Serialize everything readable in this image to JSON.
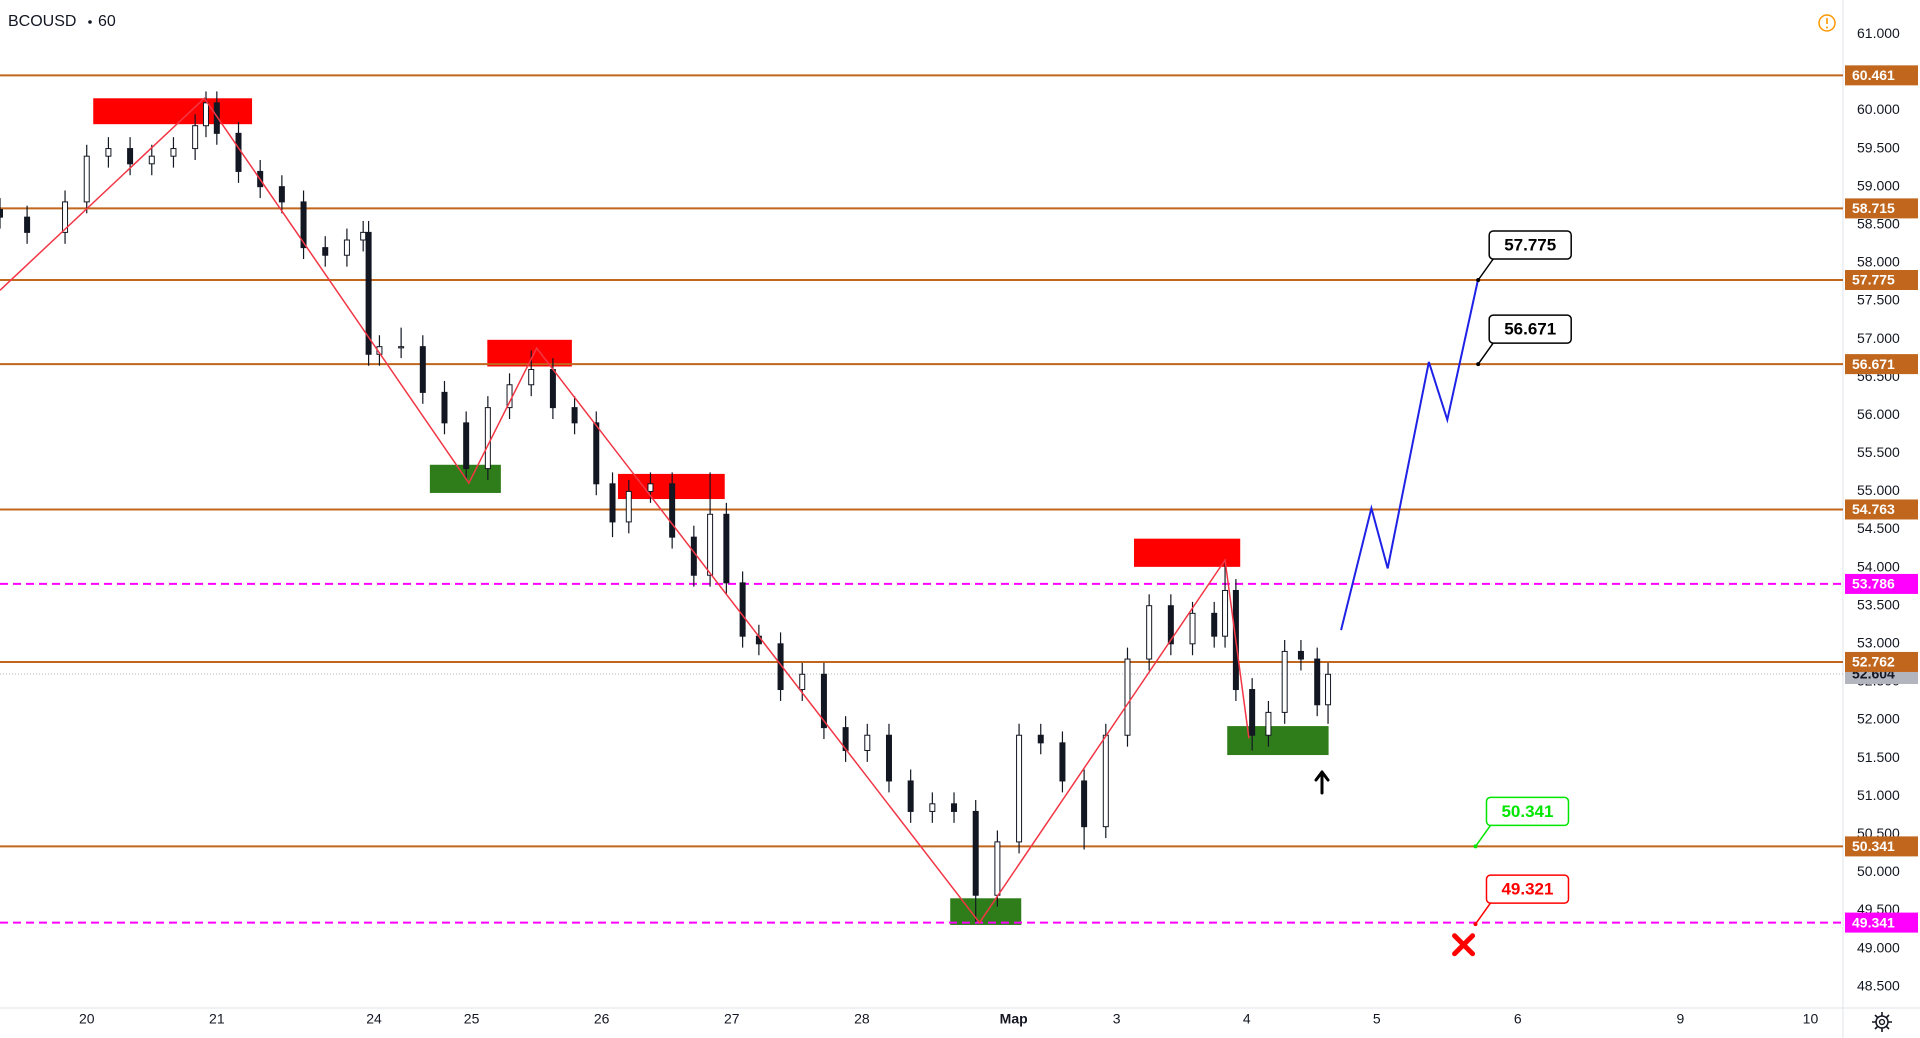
{
  "chart_data": {
    "type": "candlestick",
    "title": "BCOUSD",
    "interval": 60,
    "x": [
      0,
      5,
      12,
      16,
      20,
      24,
      28,
      32,
      36,
      38,
      40,
      44,
      48,
      52,
      56,
      60,
      64,
      67,
      68,
      70,
      74,
      78,
      82,
      86,
      90,
      94,
      98,
      102,
      106,
      110,
      113,
      116,
      120,
      124,
      128,
      131,
      134,
      137,
      140,
      144,
      148,
      152,
      156,
      160,
      164,
      168,
      172,
      176,
      180,
      184,
      188,
      192,
      196,
      200,
      204,
      208,
      212,
      216,
      220,
      224,
      226,
      228,
      231,
      234,
      237,
      240,
      243,
      245
    ],
    "open": [
      58.7,
      58.6,
      58.4,
      58.8,
      59.4,
      59.5,
      59.3,
      59.4,
      59.5,
      59.8,
      60.1,
      59.7,
      59.2,
      59.0,
      58.8,
      58.2,
      58.1,
      58.3,
      58.4,
      56.8,
      56.9,
      56.9,
      56.3,
      55.9,
      55.3,
      56.1,
      56.4,
      56.6,
      56.1,
      55.9,
      55.1,
      54.6,
      55.0,
      55.1,
      54.4,
      53.9,
      54.7,
      53.8,
      53.1,
      53.0,
      52.4,
      52.6,
      51.9,
      51.6,
      51.8,
      51.2,
      50.8,
      50.9,
      50.8,
      49.7,
      50.4,
      51.8,
      51.7,
      51.2,
      50.6,
      51.8,
      52.8,
      53.5,
      53.0,
      53.4,
      53.1,
      53.7,
      52.4,
      51.8,
      52.1,
      52.9,
      52.8,
      52.2
    ],
    "high": [
      58.85,
      58.75,
      58.95,
      59.55,
      59.65,
      59.65,
      59.55,
      59.65,
      59.95,
      60.25,
      60.25,
      59.85,
      59.35,
      59.15,
      58.95,
      58.35,
      58.45,
      58.55,
      58.55,
      57.05,
      57.15,
      57.05,
      56.45,
      56.05,
      56.25,
      56.55,
      56.85,
      56.75,
      56.25,
      56.05,
      55.25,
      55.15,
      55.25,
      55.25,
      54.55,
      55.25,
      54.85,
      53.95,
      53.25,
      53.15,
      52.75,
      52.75,
      52.05,
      51.95,
      51.95,
      51.35,
      51.05,
      51.05,
      50.95,
      50.55,
      51.95,
      51.95,
      51.85,
      51.35,
      51.95,
      52.95,
      53.65,
      53.65,
      53.55,
      53.55,
      54.1,
      53.85,
      52.55,
      52.25,
      53.05,
      53.05,
      52.95,
      52.75
    ],
    "low": [
      58.45,
      58.25,
      58.25,
      58.65,
      59.25,
      59.15,
      59.15,
      59.25,
      59.35,
      59.65,
      59.55,
      59.05,
      58.85,
      58.65,
      58.05,
      57.95,
      57.95,
      58.15,
      56.65,
      56.65,
      56.75,
      56.15,
      55.75,
      55.15,
      55.15,
      55.95,
      56.25,
      55.95,
      55.75,
      54.95,
      54.4,
      54.45,
      54.85,
      54.25,
      53.75,
      53.75,
      53.65,
      52.95,
      52.85,
      52.25,
      52.25,
      51.75,
      51.45,
      51.45,
      51.05,
      50.65,
      50.65,
      50.65,
      49.35,
      49.55,
      50.25,
      51.55,
      51.05,
      50.3,
      50.45,
      51.65,
      52.65,
      52.85,
      52.85,
      52.95,
      52.95,
      52.25,
      51.6,
      51.65,
      51.95,
      52.65,
      52.05,
      51.95
    ],
    "close": [
      58.6,
      58.4,
      58.8,
      59.4,
      59.5,
      59.3,
      59.4,
      59.5,
      59.8,
      60.1,
      59.7,
      59.2,
      59.0,
      58.8,
      58.2,
      58.1,
      58.3,
      58.4,
      56.8,
      56.9,
      56.9,
      56.3,
      55.9,
      55.3,
      56.1,
      56.4,
      56.6,
      56.1,
      55.9,
      55.1,
      54.6,
      55.0,
      55.1,
      54.4,
      53.9,
      54.7,
      53.8,
      53.1,
      53.0,
      52.4,
      52.6,
      51.9,
      51.6,
      51.8,
      51.2,
      50.8,
      50.9,
      50.8,
      49.7,
      50.4,
      51.8,
      51.7,
      51.2,
      50.6,
      51.8,
      52.8,
      53.5,
      53.0,
      53.4,
      53.1,
      53.7,
      52.4,
      51.8,
      52.1,
      52.9,
      52.8,
      52.2,
      52.6
    ],
    "candle_colors": {
      "up": "#ffffff",
      "down": "#131722"
    },
    "xlim": [
      0,
      340
    ],
    "xticks": [
      {
        "value": 16,
        "label": "20"
      },
      {
        "value": 40,
        "label": "21"
      },
      {
        "value": 69,
        "label": "24"
      },
      {
        "value": 87,
        "label": "25"
      },
      {
        "value": 111,
        "label": "26"
      },
      {
        "value": 135,
        "label": "27"
      },
      {
        "value": 159,
        "label": "28"
      },
      {
        "value": 187,
        "label": "Мар"
      },
      {
        "value": 206,
        "label": "3"
      },
      {
        "value": 230,
        "label": "4"
      },
      {
        "value": 254,
        "label": "5"
      },
      {
        "value": 280,
        "label": "6"
      },
      {
        "value": 310,
        "label": "9"
      },
      {
        "value": 334,
        "label": "10"
      }
    ],
    "ylim": [
      48.22,
      61.45
    ],
    "yticks": [
      {
        "value": 48.5,
        "label": "48.500"
      },
      {
        "value": 49,
        "label": "49.000"
      },
      {
        "value": 49.5,
        "label": "49.500"
      },
      {
        "value": 50,
        "label": "50.000"
      },
      {
        "value": 50.5,
        "label": "50.500"
      },
      {
        "value": 51,
        "label": "51.000"
      },
      {
        "value": 51.5,
        "label": "51.500"
      },
      {
        "value": 52,
        "label": "52.000"
      },
      {
        "value": 52.5,
        "label": "52.500"
      },
      {
        "value": 53,
        "label": "53.000"
      },
      {
        "value": 53.5,
        "label": "53.500"
      },
      {
        "value": 54,
        "label": "54.000"
      },
      {
        "value": 54.5,
        "label": "54.500"
      },
      {
        "value": 55,
        "label": "55.000"
      },
      {
        "value": 55.5,
        "label": "55.500"
      },
      {
        "value": 56,
        "label": "56.000"
      },
      {
        "value": 56.5,
        "label": "56.500"
      },
      {
        "value": 57,
        "label": "57.000"
      },
      {
        "value": 57.5,
        "label": "57.500"
      },
      {
        "value": 58,
        "label": "58.000"
      },
      {
        "value": 58.5,
        "label": "58.500"
      },
      {
        "value": 59,
        "label": "59.000"
      },
      {
        "value": 59.5,
        "label": "59.500"
      },
      {
        "value": 60,
        "label": "60.000"
      },
      {
        "value": 60.5,
        "label": "60.500"
      },
      {
        "value": 61,
        "label": "61.000"
      }
    ],
    "grid": false,
    "levels": [
      {
        "value": 60.461,
        "color": "#c0661d",
        "style": "solid"
      },
      {
        "value": 58.715,
        "color": "#c0661d",
        "style": "solid"
      },
      {
        "value": 57.775,
        "color": "#c0661d",
        "style": "solid"
      },
      {
        "value": 56.671,
        "color": "#c0661d",
        "style": "solid"
      },
      {
        "value": 54.763,
        "color": "#c0661d",
        "style": "solid"
      },
      {
        "value": 53.786,
        "color": "#ff00ff",
        "style": "dashed"
      },
      {
        "value": 52.762,
        "color": "#c0661d",
        "style": "solid"
      },
      {
        "value": 50.341,
        "color": "#c0661d",
        "style": "solid"
      },
      {
        "value": 49.341,
        "color": "#ff00ff",
        "style": "dashed"
      }
    ],
    "last_price": {
      "value": 52.604,
      "color": "#b2b5be"
    },
    "zones": [
      {
        "x": [
          17.2,
          46.5
        ],
        "y": [
          59.82,
          60.16
        ],
        "color": "#ff0000"
      },
      {
        "x": [
          89.9,
          105.5
        ],
        "y": [
          56.64,
          56.99
        ],
        "color": "#ff0000"
      },
      {
        "x": [
          114,
          133.7
        ],
        "y": [
          54.9,
          55.23
        ],
        "color": "#ff0000"
      },
      {
        "x": [
          209.2,
          228.8
        ],
        "y": [
          54.01,
          54.38
        ],
        "color": "#ff0000"
      },
      {
        "x": [
          79.3,
          92.4
        ],
        "y": [
          54.98,
          55.35
        ],
        "color": "#2e7d1a"
      },
      {
        "x": [
          175.3,
          188.4
        ],
        "y": [
          49.31,
          49.66
        ],
        "color": "#2e7d1a"
      },
      {
        "x": [
          226.4,
          245.1
        ],
        "y": [
          51.54,
          51.92
        ],
        "color": "#2e7d1a"
      }
    ],
    "zigzag": {
      "x": [
        0,
        37.7,
        86.5,
        99,
        180.7,
        226,
        230.4
      ],
      "y": [
        57.64,
        60.16,
        55.11,
        56.88,
        49.34,
        54.1,
        51.76
      ],
      "color": "#f23645"
    },
    "projection": {
      "x": [
        247.4,
        253,
        256,
        263.6,
        267,
        272.7
      ],
      "y": [
        53.18,
        54.78,
        53.99,
        56.7,
        55.94,
        57.79
      ],
      "color": "#1e22e6"
    },
    "callouts": [
      {
        "label": "57.775",
        "x": 272.7,
        "y": 57.775,
        "color": "#000000"
      },
      {
        "label": "56.671",
        "x": 272.7,
        "y": 56.671,
        "color": "#000000"
      },
      {
        "label": "50.341",
        "x": 272.2,
        "y": 50.341,
        "color": "#00e600"
      },
      {
        "label": "49.321",
        "x": 272.2,
        "y": 49.321,
        "color": "#ff0000"
      }
    ],
    "marker": {
      "x": 270,
      "y": 49.05,
      "color": "#ff0000"
    }
  }
}
